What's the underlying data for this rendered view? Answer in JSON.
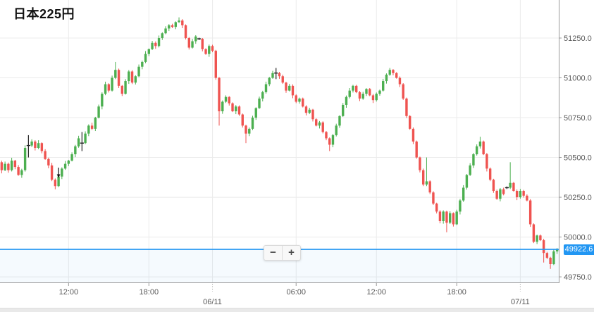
{
  "title": "日本225円",
  "last_price": {
    "value": 49922.6,
    "label": "49922.6"
  },
  "zoom_controls": {
    "minus": "−",
    "plus": "+"
  },
  "colors": {
    "up": "#4caf50",
    "down": "#ef5350",
    "neutral": "#222222",
    "accent_blue": "#2196f3",
    "grid": "#ebebeb",
    "axis_line": "#999999",
    "axis_text": "#595959"
  },
  "chart_data": {
    "type": "candlestick",
    "title": "日本225円",
    "legend_position": "top-left",
    "grid": true,
    "y_axis": {
      "min": 49715,
      "max": 51489,
      "ticks": [
        {
          "label": "51250.0",
          "value": 51250
        },
        {
          "label": "51000.0",
          "value": 51000
        },
        {
          "label": "50750.0",
          "value": 50750
        },
        {
          "label": "50500.0",
          "value": 50500
        },
        {
          "label": "50250.0",
          "value": 50250
        },
        {
          "label": "50000.0",
          "value": 50000
        },
        {
          "label": "49750.0",
          "value": 49750
        }
      ]
    },
    "x_ticks": [
      {
        "label": "12:00",
        "index": 20,
        "kind": "time"
      },
      {
        "label": "18:00",
        "index": 44,
        "kind": "time"
      },
      {
        "label": "06/11",
        "index": 63,
        "kind": "date"
      },
      {
        "label": "06:00",
        "index": 88,
        "kind": "time"
      },
      {
        "label": "12:00",
        "index": 112,
        "kind": "time"
      },
      {
        "label": "18:00",
        "index": 136,
        "kind": "time"
      },
      {
        "label": "07/11",
        "index": 155,
        "kind": "date"
      }
    ],
    "last_price": 49922.6,
    "marker": {
      "index": 17,
      "type": "arrow-down",
      "from": 50436,
      "to": 50372
    },
    "candles": [
      [
        50470,
        50480,
        50400,
        50420
      ],
      [
        50420,
        50474,
        50414,
        50460
      ],
      [
        50460,
        50468,
        50404,
        50420
      ],
      [
        50420,
        50498,
        50412,
        50480
      ],
      [
        50480,
        50485,
        50426,
        50440
      ],
      [
        50440,
        50452,
        50385,
        50390
      ],
      [
        50390,
        50429,
        50372,
        50420
      ],
      [
        50420,
        50576,
        50411,
        50560
      ],
      [
        50575,
        50640,
        50500,
        50575,
        1
      ],
      [
        50575,
        50614,
        50565,
        50600
      ],
      [
        50600,
        50608,
        50544,
        50560
      ],
      [
        50560,
        50608,
        50552,
        50590
      ],
      [
        50590,
        50595,
        50526,
        50540
      ],
      [
        50540,
        50552,
        50485,
        50490
      ],
      [
        50490,
        50499,
        50432,
        50450
      ],
      [
        50450,
        50466,
        50351,
        50360
      ],
      [
        50360,
        50368,
        50300,
        50320
      ],
      [
        50320,
        50394,
        50314,
        50380
      ],
      [
        50380,
        50438,
        50364,
        50430
      ],
      [
        50430,
        50478,
        50422,
        50460
      ],
      [
        50460,
        50485,
        50446,
        50480
      ],
      [
        50480,
        50532,
        50475,
        50520
      ],
      [
        50520,
        50579,
        50502,
        50570
      ],
      [
        50570,
        50636,
        50561,
        50620
      ],
      [
        50590,
        50660,
        50540,
        50590,
        1
      ],
      [
        50590,
        50664,
        50584,
        50650
      ],
      [
        50650,
        50708,
        50634,
        50700
      ],
      [
        50700,
        50718,
        50672,
        50680
      ],
      [
        50680,
        50755,
        50666,
        50750
      ],
      [
        50750,
        50832,
        50745,
        50820
      ],
      [
        50820,
        50909,
        50802,
        50900
      ],
      [
        50900,
        50976,
        50891,
        50960
      ],
      [
        50960,
        50966,
        50908,
        50920
      ],
      [
        50920,
        51014,
        50914,
        51000
      ],
      [
        51000,
        51100,
        50992,
        51050
      ],
      [
        51050,
        51058,
        50936,
        50950
      ],
      [
        50950,
        50955,
        50886,
        50900
      ],
      [
        50900,
        50992,
        50895,
        50980
      ],
      [
        50980,
        51049,
        50962,
        51040
      ],
      [
        51040,
        51048,
        50961,
        50970
      ],
      [
        50970,
        51016,
        50958,
        51010
      ],
      [
        51010,
        51084,
        51004,
        51070
      ],
      [
        51070,
        51108,
        51054,
        51100
      ],
      [
        51100,
        51168,
        51092,
        51150
      ],
      [
        51150,
        51185,
        51136,
        51180
      ],
      [
        51180,
        51232,
        51175,
        51220
      ],
      [
        51220,
        51229,
        51182,
        51200
      ],
      [
        51200,
        51266,
        51191,
        51250
      ],
      [
        51250,
        51286,
        51238,
        51280
      ],
      [
        51280,
        51324,
        51274,
        51310
      ],
      [
        51310,
        51338,
        51294,
        51330
      ],
      [
        51330,
        51340,
        51312,
        51320
      ],
      [
        51320,
        51355,
        51306,
        51350
      ],
      [
        51350,
        51380,
        51345,
        51360
      ],
      [
        51360,
        51369,
        51312,
        51330
      ],
      [
        51330,
        51336,
        51241,
        51250
      ],
      [
        51250,
        51256,
        51178,
        51190
      ],
      [
        51190,
        51244,
        51184,
        51230
      ],
      [
        51230,
        51268,
        51214,
        51260
      ],
      [
        51245,
        51252,
        51238,
        51245,
        1
      ],
      [
        51245,
        51250,
        51166,
        51180
      ],
      [
        51180,
        51186,
        51145,
        51150
      ],
      [
        51150,
        51209,
        51132,
        51200
      ],
      [
        51200,
        51208,
        51161,
        51170
      ],
      [
        51170,
        51176,
        50988,
        51000
      ],
      [
        51000,
        51005,
        50700,
        50790
      ],
      [
        50790,
        50858,
        50774,
        50850
      ],
      [
        50850,
        50890,
        50842,
        50880
      ],
      [
        50880,
        50885,
        50826,
        50840
      ],
      [
        50840,
        50846,
        50785,
        50790
      ],
      [
        50790,
        50829,
        50772,
        50820
      ],
      [
        50820,
        50827,
        50761,
        50770
      ],
      [
        50770,
        50776,
        50688,
        50700
      ],
      [
        50700,
        50706,
        50590,
        50650
      ],
      [
        50650,
        50688,
        50634,
        50680
      ],
      [
        50680,
        50762,
        50672,
        50750
      ],
      [
        50750,
        50815,
        50736,
        50810
      ],
      [
        50810,
        50882,
        50805,
        50870
      ],
      [
        50870,
        50919,
        50852,
        50910
      ],
      [
        50910,
        50976,
        50901,
        50960
      ],
      [
        50960,
        51006,
        50948,
        51000
      ],
      [
        51000,
        51044,
        50994,
        51030
      ],
      [
        51030,
        51062,
        50992,
        51030,
        1
      ],
      [
        51030,
        51038,
        50994,
        51010
      ],
      [
        51010,
        51020,
        50962,
        50970
      ],
      [
        50970,
        50975,
        50906,
        50920
      ],
      [
        50920,
        50962,
        50915,
        50950
      ],
      [
        50950,
        50959,
        50872,
        50890
      ],
      [
        50890,
        50897,
        50841,
        50850
      ],
      [
        50850,
        50876,
        50838,
        50870
      ],
      [
        50870,
        50876,
        50814,
        50820
      ],
      [
        50820,
        50828,
        50764,
        50780
      ],
      [
        50780,
        50812,
        50772,
        50800
      ],
      [
        50800,
        50805,
        50726,
        50740
      ],
      [
        50740,
        50746,
        50695,
        50700
      ],
      [
        50700,
        50729,
        50682,
        50720
      ],
      [
        50720,
        50727,
        50651,
        50660
      ],
      [
        50660,
        50666,
        50608,
        50620
      ],
      [
        50620,
        50626,
        50540,
        50580
      ],
      [
        50580,
        50648,
        50564,
        50640
      ],
      [
        50640,
        50712,
        50632,
        50700
      ],
      [
        50700,
        50765,
        50686,
        50760
      ],
      [
        50760,
        50842,
        50755,
        50830
      ],
      [
        50830,
        50889,
        50812,
        50880
      ],
      [
        50880,
        50936,
        50871,
        50920
      ],
      [
        50920,
        50956,
        50908,
        50950
      ],
      [
        50950,
        50956,
        50904,
        50910
      ],
      [
        50910,
        50918,
        50854,
        50870
      ],
      [
        50870,
        50912,
        50862,
        50900
      ],
      [
        50900,
        50935,
        50886,
        50930
      ],
      [
        50930,
        50936,
        50885,
        50890
      ],
      [
        50890,
        50899,
        50842,
        50860
      ],
      [
        50860,
        50908,
        50851,
        50900
      ],
      [
        50900,
        50926,
        50888,
        50920
      ],
      [
        50920,
        50994,
        50914,
        50980
      ],
      [
        50980,
        51028,
        50964,
        51020
      ],
      [
        51020,
        51062,
        51012,
        51050
      ],
      [
        51050,
        51055,
        51016,
        51030
      ],
      [
        51030,
        51036,
        50995,
        51000
      ],
      [
        51000,
        51009,
        50942,
        50960
      ],
      [
        50960,
        50967,
        50861,
        50870
      ],
      [
        50870,
        50876,
        50748,
        50760
      ],
      [
        50760,
        50766,
        50674,
        50680
      ],
      [
        50680,
        50688,
        50584,
        50600
      ],
      [
        50600,
        50606,
        50492,
        50500
      ],
      [
        50500,
        50505,
        50406,
        50420
      ],
      [
        50420,
        50430,
        50320,
        50330
      ],
      [
        50330,
        50500,
        50320,
        50350
      ],
      [
        50350,
        50356,
        50270,
        50280
      ],
      [
        50280,
        50288,
        50202,
        50210
      ],
      [
        50210,
        50216,
        50148,
        50160
      ],
      [
        50160,
        50169,
        50086,
        50100
      ],
      [
        50100,
        50168,
        50084,
        50160
      ],
      [
        50160,
        50165,
        50030,
        50090
      ],
      [
        50090,
        50162,
        50082,
        50150
      ],
      [
        50150,
        50155,
        50066,
        50080
      ],
      [
        50080,
        50172,
        50075,
        50160
      ],
      [
        50160,
        50239,
        50142,
        50230
      ],
      [
        50230,
        50326,
        50221,
        50310
      ],
      [
        50310,
        50396,
        50298,
        50390
      ],
      [
        50390,
        50464,
        50384,
        50450
      ],
      [
        50450,
        50528,
        50434,
        50520
      ],
      [
        50520,
        50582,
        50512,
        50570
      ],
      [
        50570,
        50630,
        50556,
        50600
      ],
      [
        50600,
        50606,
        50515,
        50520
      ],
      [
        50520,
        50529,
        50412,
        50430
      ],
      [
        50430,
        50437,
        50351,
        50360
      ],
      [
        50360,
        50366,
        50278,
        50290
      ],
      [
        50290,
        50298,
        50234,
        50240
      ],
      [
        50240,
        50308,
        50224,
        50300
      ],
      [
        50300,
        50310,
        50262,
        50270
      ],
      [
        50310,
        50318,
        50302,
        50310,
        1
      ],
      [
        50310,
        50470,
        50302,
        50340
      ],
      [
        50340,
        50346,
        50285,
        50290
      ],
      [
        50290,
        50299,
        50232,
        50250
      ],
      [
        50250,
        50302,
        50241,
        50290
      ],
      [
        50290,
        50296,
        50248,
        50260
      ],
      [
        50260,
        50268,
        50224,
        50230
      ],
      [
        50230,
        50238,
        50064,
        50080
      ],
      [
        50080,
        50086,
        49962,
        49970
      ],
      [
        49970,
        50015,
        49956,
        50010
      ],
      [
        50010,
        50016,
        49975,
        49980
      ],
      [
        49980,
        49989,
        49840,
        49900
      ],
      [
        49900,
        49907,
        49861,
        49870
      ],
      [
        49870,
        49876,
        49800,
        49830
      ],
      [
        49830,
        49924,
        49824,
        49910
      ],
      [
        49910,
        49931,
        49894,
        49922.6
      ]
    ]
  }
}
